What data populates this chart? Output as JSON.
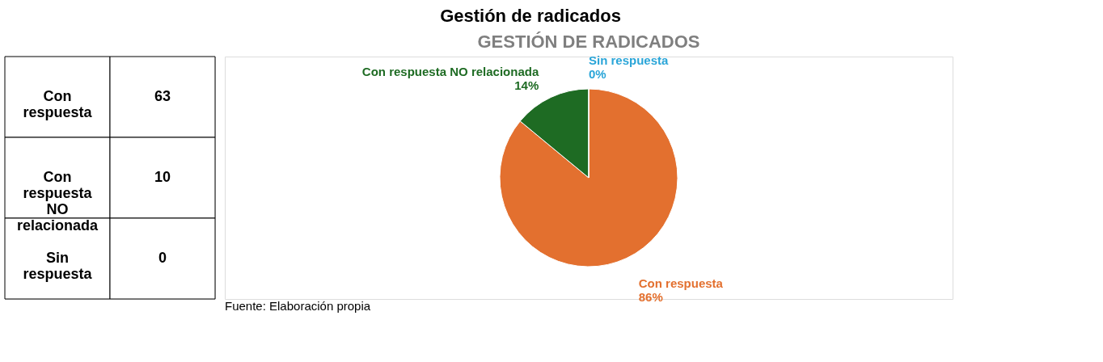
{
  "chart_data": [
    {
      "type": "other",
      "title": "Gestión de radicados",
      "categories": [
        "Con respuesta",
        "Con respuesta NO relacionada",
        "Sin respuesta"
      ],
      "values": [
        63,
        10,
        0
      ],
      "data_labels": true
    },
    {
      "type": "pie",
      "title": "GESTIÓN DE RADICADOS",
      "categories": [
        "Con respuesta",
        "Con respuesta NO relacionada",
        "Sin respuesta"
      ],
      "values": [
        86,
        14,
        0
      ],
      "value_labels": [
        "86%",
        "14%",
        "0%"
      ],
      "colors": [
        "#e3702f",
        "#1e6b23",
        "#2aa5d8"
      ],
      "annotations": [
        "Fuente: Elaboración propia"
      ]
    }
  ]
}
